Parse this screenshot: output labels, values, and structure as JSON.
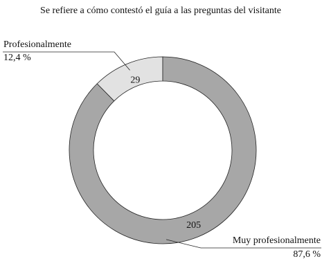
{
  "chart_data": {
    "type": "donut",
    "title": "Se refiere a cómo contestó el guía a las preguntas del visitante",
    "categories": [
      "Profesionalmente",
      "Muy profesionalmente"
    ],
    "values": [
      29,
      205
    ],
    "percentages": [
      12.4,
      87.6
    ],
    "percentage_labels": [
      "12,4 %",
      "87,6 %"
    ],
    "colors": [
      "#e2e2e2",
      "#a7a7a7"
    ]
  }
}
